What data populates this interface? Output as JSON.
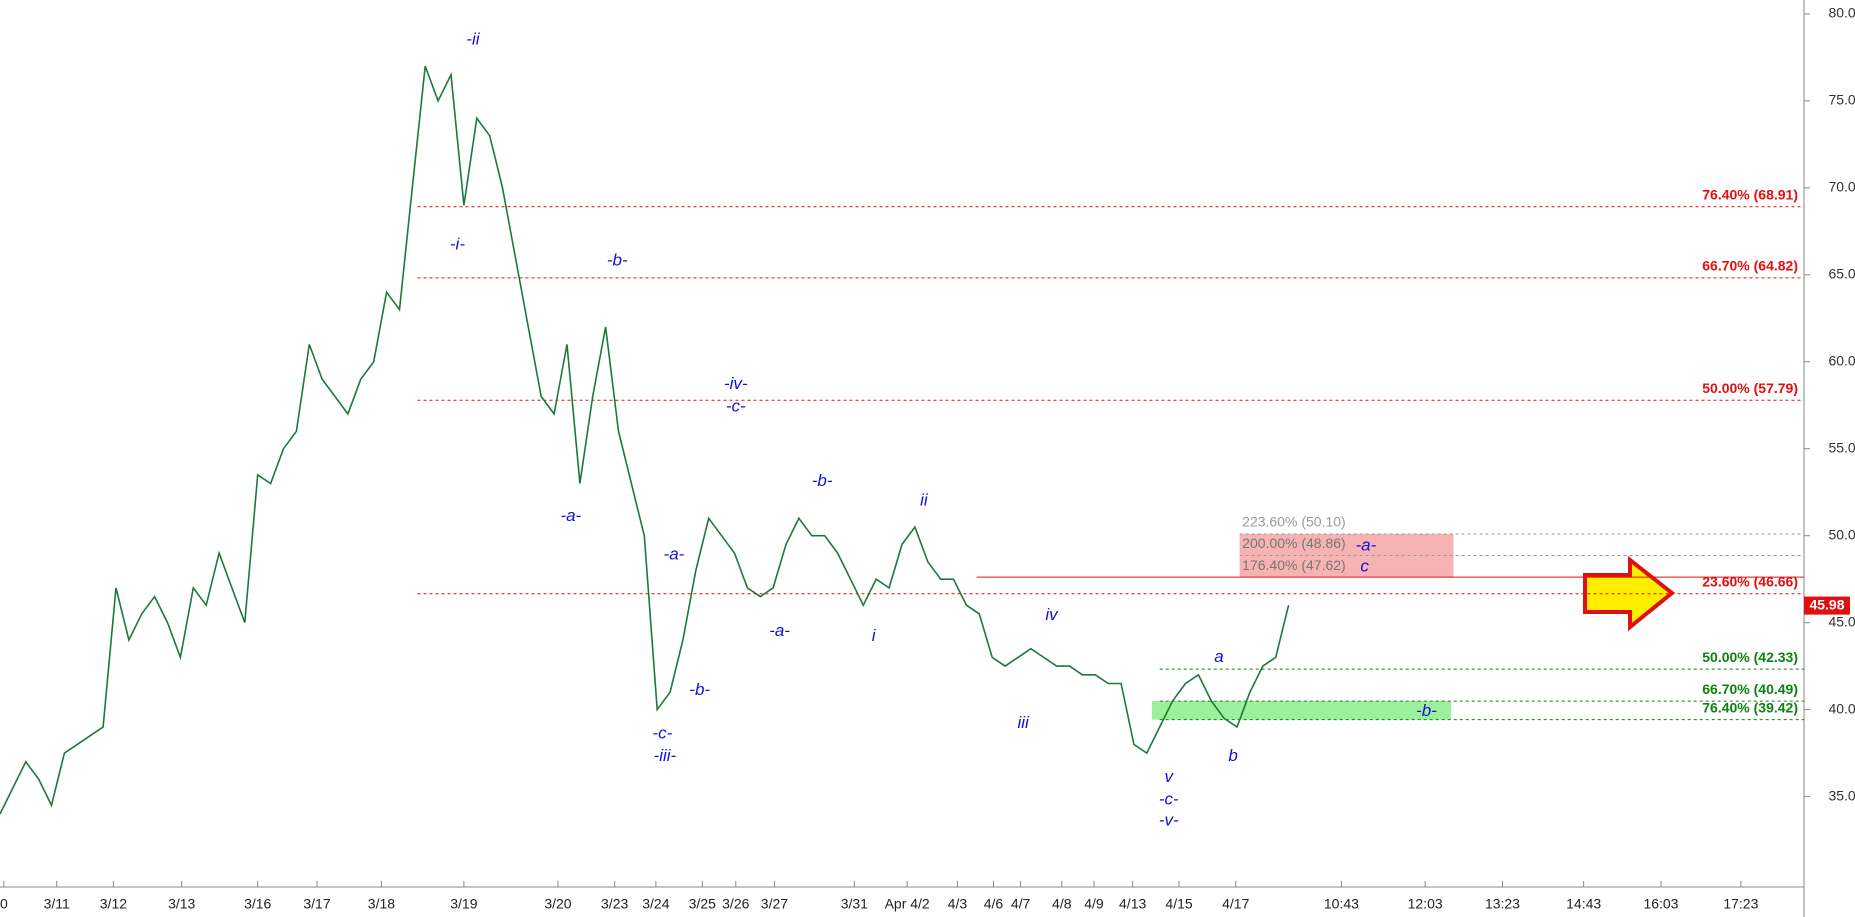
{
  "chart_data": {
    "type": "line",
    "color": "#1a7a3a",
    "xlim": [
      0,
      140
    ],
    "xticks": [
      {
        "value": 0.3,
        "label": "0"
      },
      {
        "value": 4.4,
        "label": "3/11"
      },
      {
        "value": 8.8,
        "label": "3/12"
      },
      {
        "value": 14.1,
        "label": "3/13"
      },
      {
        "value": 20,
        "label": "3/16"
      },
      {
        "value": 24.6,
        "label": "3/17"
      },
      {
        "value": 29.6,
        "label": "3/18"
      },
      {
        "value": 36,
        "label": "3/19"
      },
      {
        "value": 43.3,
        "label": "3/20"
      },
      {
        "value": 47.7,
        "label": "3/23"
      },
      {
        "value": 50.9,
        "label": "3/24"
      },
      {
        "value": 54.5,
        "label": "3/25"
      },
      {
        "value": 57.1,
        "label": "3/26"
      },
      {
        "value": 60.1,
        "label": "3/27"
      },
      {
        "value": 66.3,
        "label": "3/31"
      },
      {
        "value": 70.4,
        "label": "Apr 4/2"
      },
      {
        "value": 74.3,
        "label": "4/3"
      },
      {
        "value": 77.1,
        "label": "4/6"
      },
      {
        "value": 79.2,
        "label": "4/7"
      },
      {
        "value": 82.4,
        "label": "4/8"
      },
      {
        "value": 84.9,
        "label": "4/9"
      },
      {
        "value": 87.9,
        "label": "4/13"
      },
      {
        "value": 91.5,
        "label": "4/15"
      },
      {
        "value": 95.9,
        "label": "4/17"
      },
      {
        "value": 104.1,
        "label": "10:43"
      },
      {
        "value": 110.6,
        "label": "12:03"
      },
      {
        "value": 116.6,
        "label": "13:23"
      },
      {
        "value": 122.9,
        "label": "14:43"
      },
      {
        "value": 128.9,
        "label": "16:03"
      },
      {
        "value": 135.1,
        "label": "17:23"
      }
    ],
    "ylim": [
      29.8,
      80.8
    ],
    "yticks": [
      {
        "value": 35,
        "label": "35.00"
      },
      {
        "value": 40,
        "label": "40.00"
      },
      {
        "value": 45,
        "label": "45.00"
      },
      {
        "value": 50,
        "label": "50.00"
      },
      {
        "value": 55,
        "label": "55.00"
      },
      {
        "value": 60,
        "label": "60.00"
      },
      {
        "value": 65,
        "label": "65.00"
      },
      {
        "value": 70,
        "label": "70.00"
      },
      {
        "value": 75,
        "label": "75.00"
      },
      {
        "value": 80,
        "label": "80.00"
      }
    ],
    "values": [
      34,
      35.5,
      37,
      36,
      34.5,
      37.5,
      38,
      38.5,
      39,
      47,
      44,
      45.5,
      46.5,
      45,
      43,
      47,
      46,
      49,
      47,
      45,
      53.5,
      53,
      55,
      56,
      61,
      59,
      58,
      57,
      59,
      60,
      64,
      63,
      70,
      77,
      75,
      76.5,
      69,
      74,
      73,
      70,
      66,
      62,
      58,
      57,
      61,
      53,
      58,
      62,
      56,
      53,
      50,
      40,
      41,
      44,
      48,
      51,
      50,
      49,
      47,
      46.5,
      47,
      49.5,
      51,
      50,
      50,
      49,
      47.5,
      46,
      47.5,
      47,
      49.5,
      50.5,
      48.5,
      47.5,
      47.5,
      46,
      45.5,
      43,
      42.5,
      43,
      43.5,
      43,
      42.5,
      42.5,
      42,
      42,
      41.5,
      41.5,
      38,
      37.5,
      39,
      40.5,
      41.5,
      42,
      40.5,
      39.5,
      39,
      41,
      42.5,
      43,
      46
    ],
    "levels": [
      {
        "label": "76.40% (68.91)",
        "value": 68.91,
        "color": "#e01010"
      },
      {
        "label": "66.70% (64.82)",
        "value": 64.82,
        "color": "#e01010"
      },
      {
        "label": "50.00% (57.79)",
        "value": 57.79,
        "color": "#e01010"
      },
      {
        "label": "23.60% (46.66)",
        "value": 46.66,
        "color": "#e01010"
      },
      {
        "label": "50.00% (42.33)",
        "value": 42.33,
        "color": "#108010"
      },
      {
        "label": "66.70% (40.49)",
        "value": 40.49,
        "color": "#108010"
      },
      {
        "label": "76.40% (39.42)",
        "value": 39.42,
        "color": "#108010"
      },
      {
        "label": "223.60% (50.10)",
        "value": 50.1,
        "color": "#999999"
      },
      {
        "label": "200.00% (48.86)",
        "value": 48.86,
        "color": "#999999"
      },
      {
        "label": "176.40% (47.62)",
        "value": 47.62,
        "color": "#999999"
      }
    ],
    "last_price": 45.98,
    "annotations": [
      "-ii",
      "-i-",
      "-b-",
      "-a-",
      "-iv-",
      "-c-",
      "-a-",
      "-b-",
      "ii",
      "-a-",
      "i",
      "-b-",
      "-c-",
      "-iii-",
      "iv",
      "iii",
      "a",
      "b",
      "v",
      "-c-",
      "-v-",
      "-b-",
      "-a-",
      "c"
    ]
  }
}
